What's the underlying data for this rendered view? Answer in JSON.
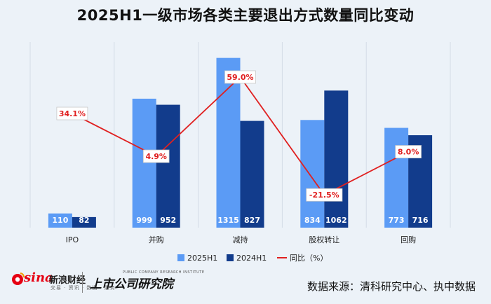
{
  "title": "2025H1一级市场各类主要退出方式数量同比变动",
  "chart_data": {
    "type": "bar",
    "categories": [
      "IPO",
      "并购",
      "减持",
      "股权转让",
      "回购"
    ],
    "series": [
      {
        "name": "2025H1",
        "values": [
          110,
          999,
          1315,
          834,
          773
        ],
        "color": "#5b9bf5"
      },
      {
        "name": "2024H1",
        "values": [
          82,
          952,
          827,
          1062,
          716
        ],
        "color": "#123c8c"
      }
    ],
    "line_series": {
      "name": "同比（%）",
      "values": [
        34.1,
        4.9,
        59.0,
        -21.5,
        8.0
      ],
      "labels": [
        "34.1%",
        "4.9%",
        "59.0%",
        "-21.5%",
        "8.0%"
      ],
      "color": "#e02020"
    },
    "ylim_bar": [
      0,
      1400
    ],
    "ylim_line": [
      -30,
      70
    ],
    "grid": false,
    "legend_position": "bottom"
  },
  "footer": {
    "source": "数据来源：清科研究中心、执中数据",
    "brand_sina": "sina",
    "brand_sina_cn": "新浪财经",
    "brand_sina_sub": "交易 · 资讯 · 数据 · 服务",
    "brand_sub": "上市公司研究院",
    "brand_sub_en": "PUBLIC COMPANY RESEARCH INSTITUTE"
  }
}
